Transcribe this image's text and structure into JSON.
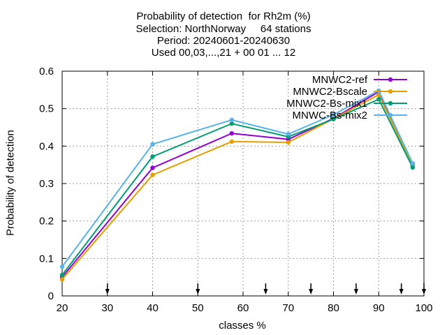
{
  "chart_data": {
    "type": "line",
    "title_lines": [
      "Probability of detection  for Rh2m (%)",
      "Selection: NorthNorway     64 stations",
      "Period: 20240601-20240630",
      "Used 00,03,...,21 + 00 01 ... 12"
    ],
    "xlabel": "classes %",
    "ylabel": "Probability of detection",
    "xlim": [
      20,
      100
    ],
    "ylim": [
      0,
      0.6
    ],
    "xticks": [
      20,
      30,
      40,
      50,
      60,
      70,
      80,
      90,
      100
    ],
    "yticks": [
      0,
      0.1,
      0.2,
      0.3,
      0.4,
      0.5,
      0.6
    ],
    "ytick_labels": [
      "0",
      "0.1",
      "0.2",
      "0.3",
      "0.4",
      "0.5",
      "0.6"
    ],
    "grid": true,
    "legend_position": "top-right",
    "class_markers": [
      30,
      50,
      65,
      75,
      85,
      95,
      100
    ],
    "series": [
      {
        "name": "MNWC2-ref",
        "color": "#9400d3",
        "x": [
          20,
          40,
          57.5,
          70,
          80,
          90,
          97.5
        ],
        "y": [
          0.05,
          0.342,
          0.434,
          0.418,
          0.474,
          0.545,
          0.35
        ]
      },
      {
        "name": "MNWC2-Bscale",
        "color": "#e69f00",
        "x": [
          20,
          40,
          57.5,
          70,
          80,
          90,
          97.5
        ],
        "y": [
          0.044,
          0.323,
          0.412,
          0.41,
          0.473,
          0.537,
          0.347
        ]
      },
      {
        "name": "MNWC2-Bs-mix1",
        "color": "#009e73",
        "x": [
          20,
          40,
          57.5,
          70,
          80,
          90,
          97.5
        ],
        "y": [
          0.056,
          0.372,
          0.46,
          0.425,
          0.472,
          0.525,
          0.343
        ]
      },
      {
        "name": "MNWC-Bs-mix2",
        "color": "#56b4e9",
        "x": [
          20,
          40,
          57.5,
          70,
          80,
          90,
          97.5
        ],
        "y": [
          0.078,
          0.405,
          0.47,
          0.432,
          0.484,
          0.548,
          0.354
        ]
      }
    ]
  }
}
